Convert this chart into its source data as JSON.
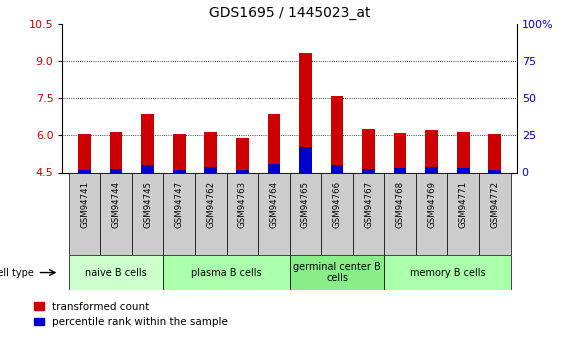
{
  "title": "GDS1695 / 1445023_at",
  "samples": [
    "GSM94741",
    "GSM94744",
    "GSM94745",
    "GSM94747",
    "GSM94762",
    "GSM94763",
    "GSM94764",
    "GSM94765",
    "GSM94766",
    "GSM94767",
    "GSM94768",
    "GSM94769",
    "GSM94771",
    "GSM94772"
  ],
  "transformed_count": [
    6.05,
    6.15,
    6.85,
    6.05,
    6.15,
    5.9,
    6.85,
    9.35,
    7.6,
    6.25,
    6.1,
    6.2,
    6.15,
    6.05
  ],
  "percentile_rank": [
    2.0,
    2.5,
    5.0,
    2.0,
    4.0,
    2.0,
    5.5,
    17.0,
    5.0,
    2.5,
    3.0,
    3.5,
    3.0,
    2.0
  ],
  "ymin": 4.5,
  "ymax": 10.5,
  "yticks_left": [
    4.5,
    6.0,
    7.5,
    9.0,
    10.5
  ],
  "yticks_right": [
    0,
    25,
    50,
    75,
    100
  ],
  "cell_groups": [
    {
      "label": "naive B cells",
      "start": 0,
      "end": 3,
      "color": "#ccffcc"
    },
    {
      "label": "plasma B cells",
      "start": 3,
      "end": 7,
      "color": "#aaffaa"
    },
    {
      "label": "germinal center B\ncells",
      "start": 7,
      "end": 10,
      "color": "#88ee88"
    },
    {
      "label": "memory B cells",
      "start": 10,
      "end": 14,
      "color": "#aaffaa"
    }
  ],
  "bar_color_red": "#cc0000",
  "bar_color_blue": "#0000cc",
  "bar_width": 0.4,
  "tick_label_color_left": "#cc0000",
  "tick_label_color_right": "#0000cc",
  "plot_bg_color": "#ffffff",
  "sample_box_color": "#cccccc",
  "base_value": 4.5
}
